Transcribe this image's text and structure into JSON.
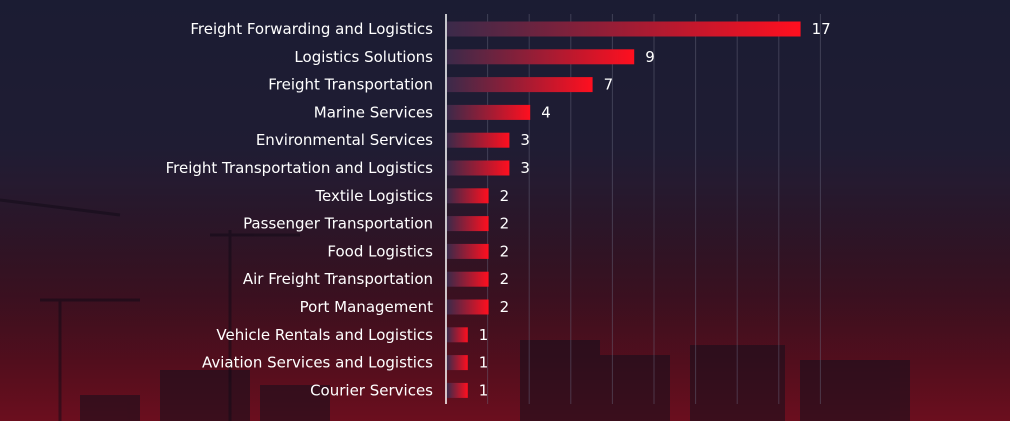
{
  "chart_data": {
    "type": "bar",
    "orientation": "horizontal",
    "categories": [
      "Freight Forwarding and Logistics",
      "Logistics Solutions",
      "Freight Transportation",
      "Marine Services",
      "Environmental Services",
      "Freight Transportation and Logistics",
      "Textile Logistics",
      "Passenger Transportation",
      "Food Logistics",
      "Air Freight Transportation",
      "Port Management",
      "Vehicle Rentals and Logistics",
      "Aviation Services and Logistics",
      "Courier Services"
    ],
    "values": [
      17,
      9,
      7,
      4,
      3,
      3,
      2,
      2,
      2,
      2,
      2,
      1,
      1,
      1
    ],
    "title": "",
    "xlabel": "",
    "ylabel": "",
    "xlim": [
      0,
      18
    ],
    "grid": true,
    "legend": "none",
    "colors": {
      "bar_start": "#3b2a4a",
      "bar_end": "#ff0f1f",
      "text": "#ffffff",
      "axis": "#ffffff",
      "grid": "#6a6a80"
    }
  }
}
